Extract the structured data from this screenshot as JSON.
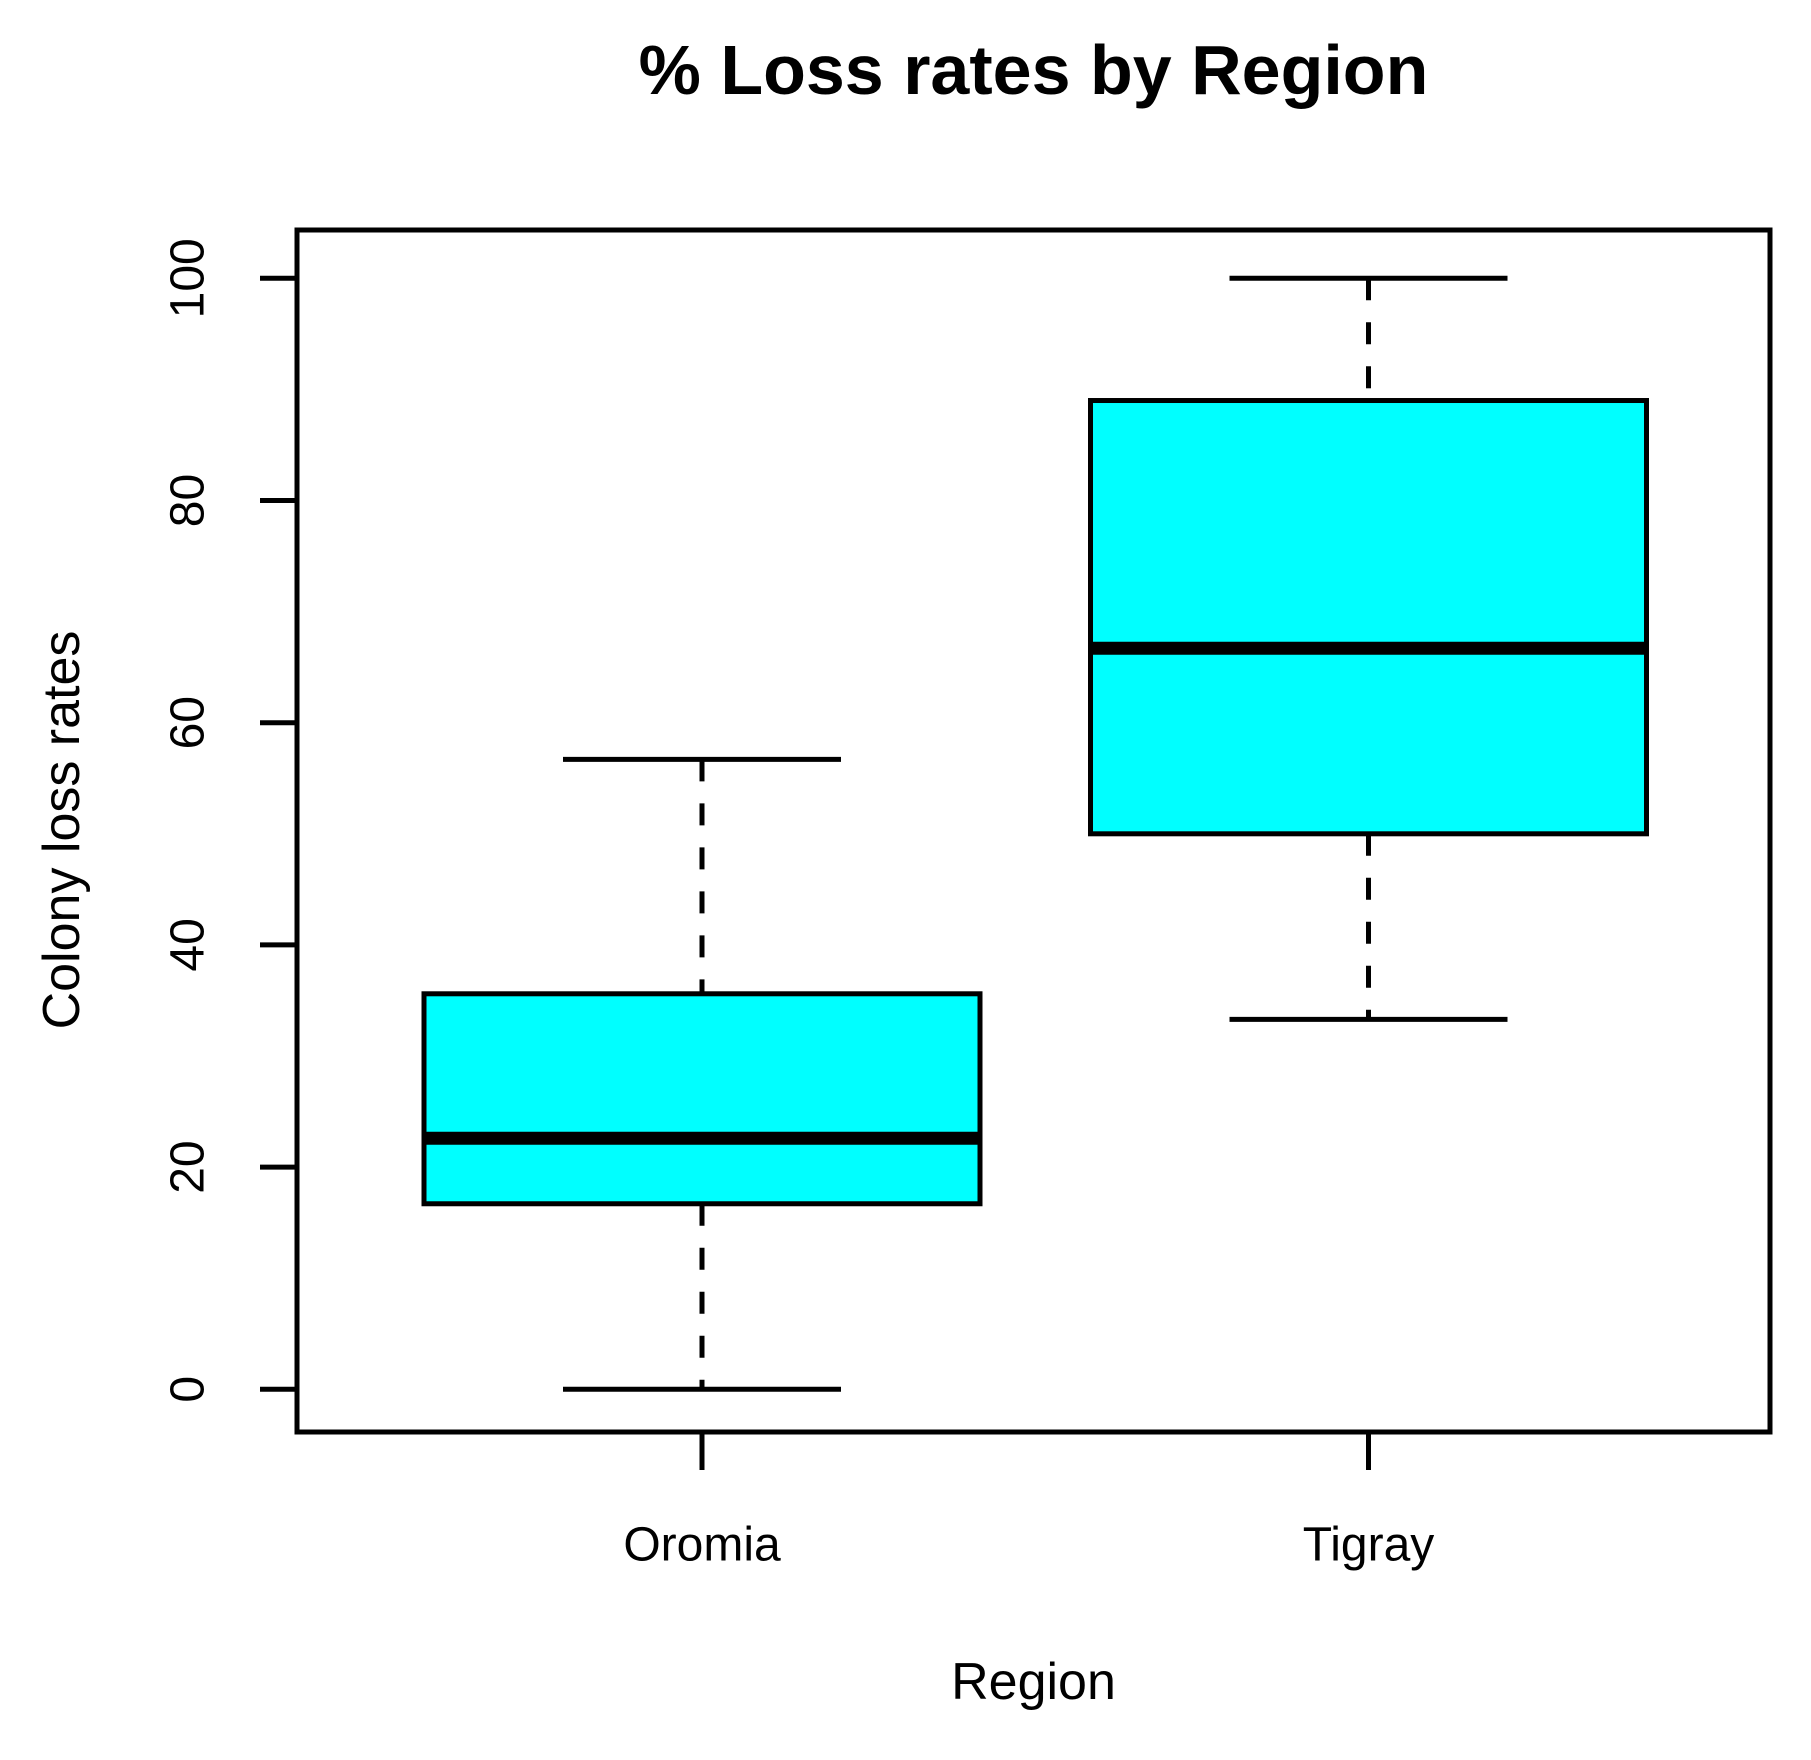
{
  "title": "% Loss rates by Region",
  "x_axis": {
    "label": "Region",
    "categories": [
      "Oromia",
      "Tigray"
    ]
  },
  "y_axis": {
    "label": "Colony loss rates",
    "ticks": [
      0,
      20,
      40,
      60,
      80,
      100
    ]
  },
  "colors": {
    "box_fill": "#00FFFF",
    "line": "#000000",
    "background": "#FFFFFF"
  },
  "chart_data": {
    "type": "boxplot",
    "title": "% Loss rates by Region",
    "xlabel": "Region",
    "ylabel": "Colony loss rates",
    "ylim": [
      0,
      100
    ],
    "grid": false,
    "categories": [
      "Oromia",
      "Tigray"
    ],
    "series": [
      {
        "name": "Oromia",
        "min": 0,
        "q1": 16.7,
        "median": 22.6,
        "q3": 35.6,
        "max": 56.7
      },
      {
        "name": "Tigray",
        "min": 33.3,
        "q1": 50,
        "median": 66.7,
        "q3": 89,
        "max": 100
      }
    ],
    "box_fill": "#00FFFF"
  }
}
